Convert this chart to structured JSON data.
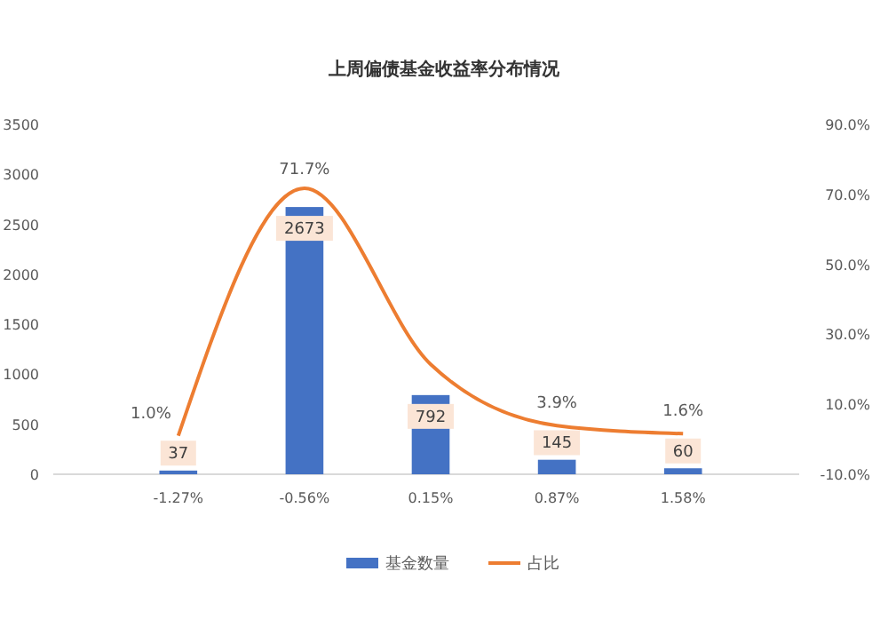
{
  "chart_data": {
    "type": "bar",
    "title": "上周偏债基金收益率分布情况",
    "categories": [
      "-1.27%",
      "-0.56%",
      "0.15%",
      "0.87%",
      "1.58%"
    ],
    "series": [
      {
        "name": "基金数量",
        "color": "#4472c4",
        "values": [
          37,
          2673,
          792,
          145,
          60
        ],
        "value_labels": [
          "37",
          "2673",
          "792",
          "145",
          "60"
        ]
      },
      {
        "name": "占比",
        "type": "line",
        "axis": "y2",
        "color": "#ed7d31",
        "values": [
          1.0,
          71.7,
          21.4,
          3.9,
          1.6
        ],
        "value_labels": [
          "1.0%",
          "71.7%",
          null,
          "3.9%",
          "1.6%"
        ]
      }
    ],
    "ylim": [
      0,
      3500
    ],
    "yticks": [
      0,
      500,
      1000,
      1500,
      2000,
      2500,
      3000,
      3500
    ],
    "y2lim": [
      -10,
      90
    ],
    "y2ticks": [
      {
        "value": -10,
        "label": "-10.0%"
      },
      {
        "value": 10,
        "label": "10.0%"
      },
      {
        "value": 30,
        "label": "30.0%"
      },
      {
        "value": 50,
        "label": "50.0%"
      },
      {
        "value": 70,
        "label": "70.0%"
      },
      {
        "value": 90,
        "label": "90.0%"
      }
    ],
    "legend": "bottom",
    "marker": "none",
    "line_style": "solid"
  }
}
